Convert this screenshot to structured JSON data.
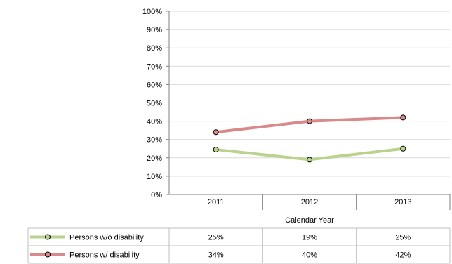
{
  "chart_data": {
    "type": "line",
    "categories": [
      "2011",
      "2012",
      "2013"
    ],
    "xlabel": "Calendar Year",
    "ylabel": "",
    "title": "",
    "ylim": [
      0,
      100
    ],
    "y_ticks": [
      "0%",
      "10%",
      "20%",
      "30%",
      "40%",
      "50%",
      "60%",
      "70%",
      "80%",
      "90%",
      "100%"
    ],
    "grid": true,
    "legend": "data-table",
    "series": [
      {
        "name": "Persons w/o disability",
        "values": [
          24.5,
          19,
          25
        ],
        "labels": [
          "25%",
          "19%",
          "25%"
        ],
        "color": "#b9d38c"
      },
      {
        "name": "Persons w/ disability",
        "values": [
          34,
          40,
          42
        ],
        "labels": [
          "34%",
          "40%",
          "42%"
        ],
        "color": "#d88a8a"
      }
    ]
  }
}
